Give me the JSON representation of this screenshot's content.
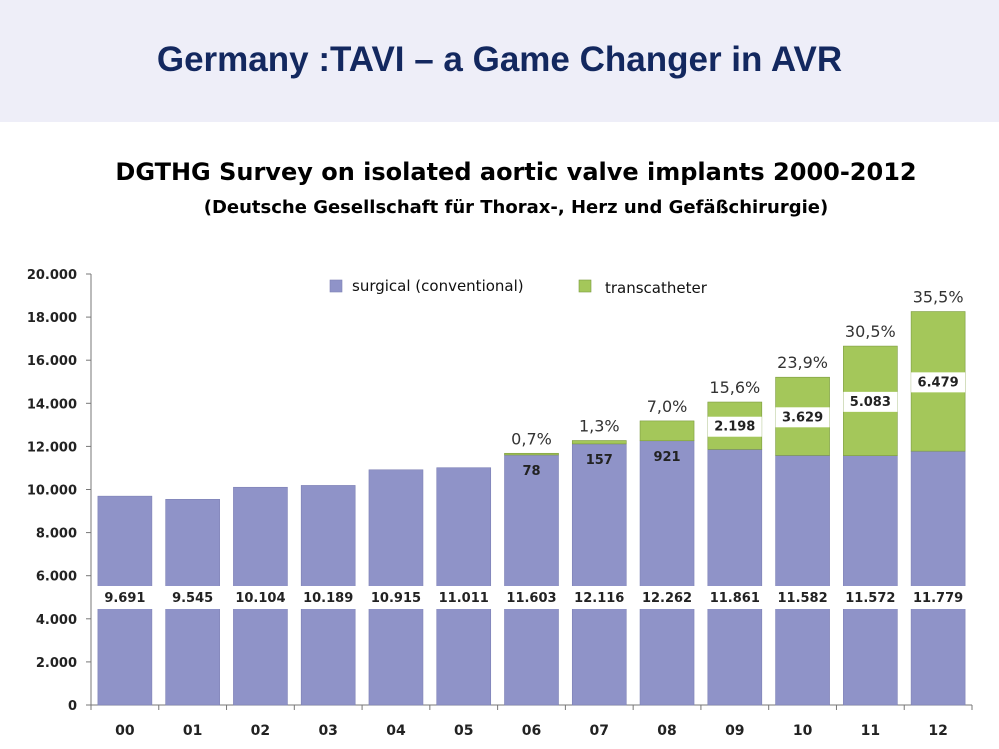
{
  "slide": {
    "title": "Germany :TAVI – a Game Changer in AVR"
  },
  "chart_data": {
    "type": "bar",
    "stacked": true,
    "title": "DGTHG Survey on isolated aortic valve implants  2000-2012",
    "subtitle": "(Deutsche Gesellschaft für Thorax-, Herz und Gefäßchirurgie)",
    "categories": [
      "00",
      "01",
      "02",
      "03",
      "04",
      "05",
      "06",
      "07",
      "08",
      "09",
      "10",
      "11",
      "12"
    ],
    "series": [
      {
        "name": "surgical (conventional)",
        "color": "#8f93c8",
        "values": [
          9691,
          9545,
          10104,
          10189,
          10915,
          11011,
          11603,
          12116,
          12262,
          11861,
          11582,
          11572,
          11779
        ],
        "labels": [
          "9.691",
          "9.545",
          "10.104",
          "10.189",
          "10.915",
          "11.011",
          "11.603",
          "12.116",
          "12.262",
          "11.861",
          "11.582",
          "11.572",
          "11.779"
        ]
      },
      {
        "name": "transcatheter",
        "color": "#a4c75a",
        "values": [
          0,
          0,
          0,
          0,
          0,
          0,
          78,
          157,
          921,
          2198,
          3629,
          5083,
          6479
        ],
        "labels": [
          "",
          "",
          "",
          "",
          "",
          "",
          "78",
          "157",
          "921",
          "2.198",
          "3.629",
          "5.083",
          "6.479"
        ]
      }
    ],
    "percent_labels": [
      "",
      "",
      "",
      "",
      "",
      "",
      "0,7%",
      "1,3%",
      "7,0%",
      "15,6%",
      "23,9%",
      "30,5%",
      "35,5%"
    ],
    "yticks": [
      0,
      2000,
      4000,
      6000,
      8000,
      10000,
      12000,
      14000,
      16000,
      18000,
      20000
    ],
    "ytick_labels": [
      "0",
      "2.000",
      "4.000",
      "6.000",
      "8.000",
      "10.000",
      "12.000",
      "14.000",
      "16.000",
      "18.000",
      "20.000"
    ],
    "ylim": [
      0,
      20000
    ],
    "grid": false,
    "legend_position": "top-center"
  }
}
